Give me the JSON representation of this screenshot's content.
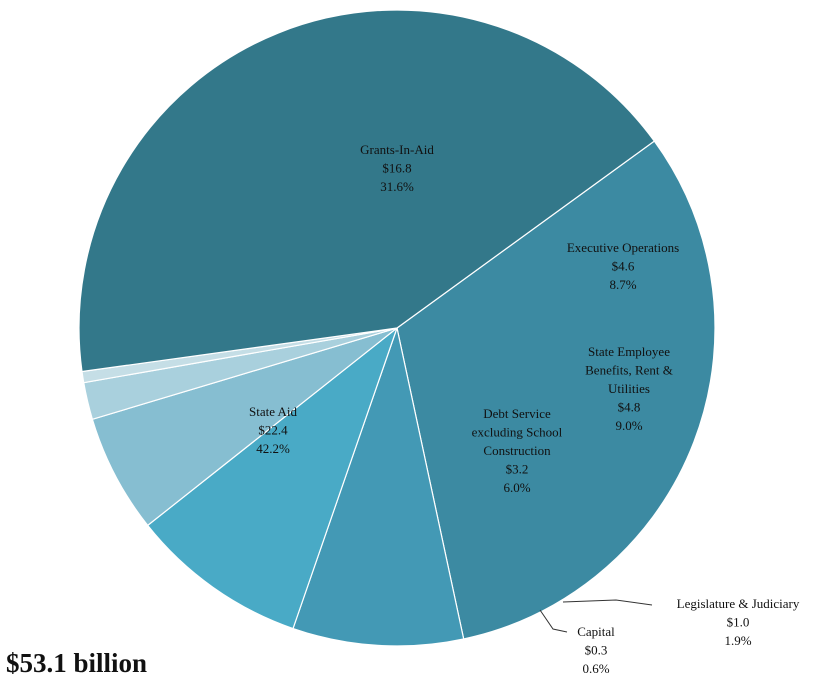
{
  "chart_data": {
    "type": "pie",
    "total_label": "$53.1 billion",
    "slices": [
      {
        "label": [
          "Grants-In-Aid"
        ],
        "value": 16.8,
        "value_label": "$16.8",
        "percent_label": "31.6%",
        "color": "#3c8aa2"
      },
      {
        "label": [
          "Executive Operations"
        ],
        "value": 4.6,
        "value_label": "$4.6",
        "percent_label": "8.7%",
        "color": "#4399b5"
      },
      {
        "label": [
          "State Employee",
          "Benefits, Rent &",
          "Utilities"
        ],
        "value": 4.8,
        "value_label": "$4.8",
        "percent_label": "9.0%",
        "color": "#49aac6"
      },
      {
        "label": [
          "Debt Service",
          "excluding School",
          "Construction"
        ],
        "value": 3.2,
        "value_label": "$3.2",
        "percent_label": "6.0%",
        "color": "#86bed1"
      },
      {
        "label": [
          "Legislature & Judiciary"
        ],
        "value": 1.0,
        "value_label": "$1.0",
        "percent_label": "1.9%",
        "color": "#a9d0dd"
      },
      {
        "label": [
          "Capital"
        ],
        "value": 0.3,
        "value_label": "$0.3",
        "percent_label": "0.6%",
        "color": "#c5dee6"
      },
      {
        "label": [
          "State Aid"
        ],
        "value": 22.4,
        "value_label": "$22.4",
        "percent_label": "42.2%",
        "color": "#33788a"
      }
    ]
  }
}
